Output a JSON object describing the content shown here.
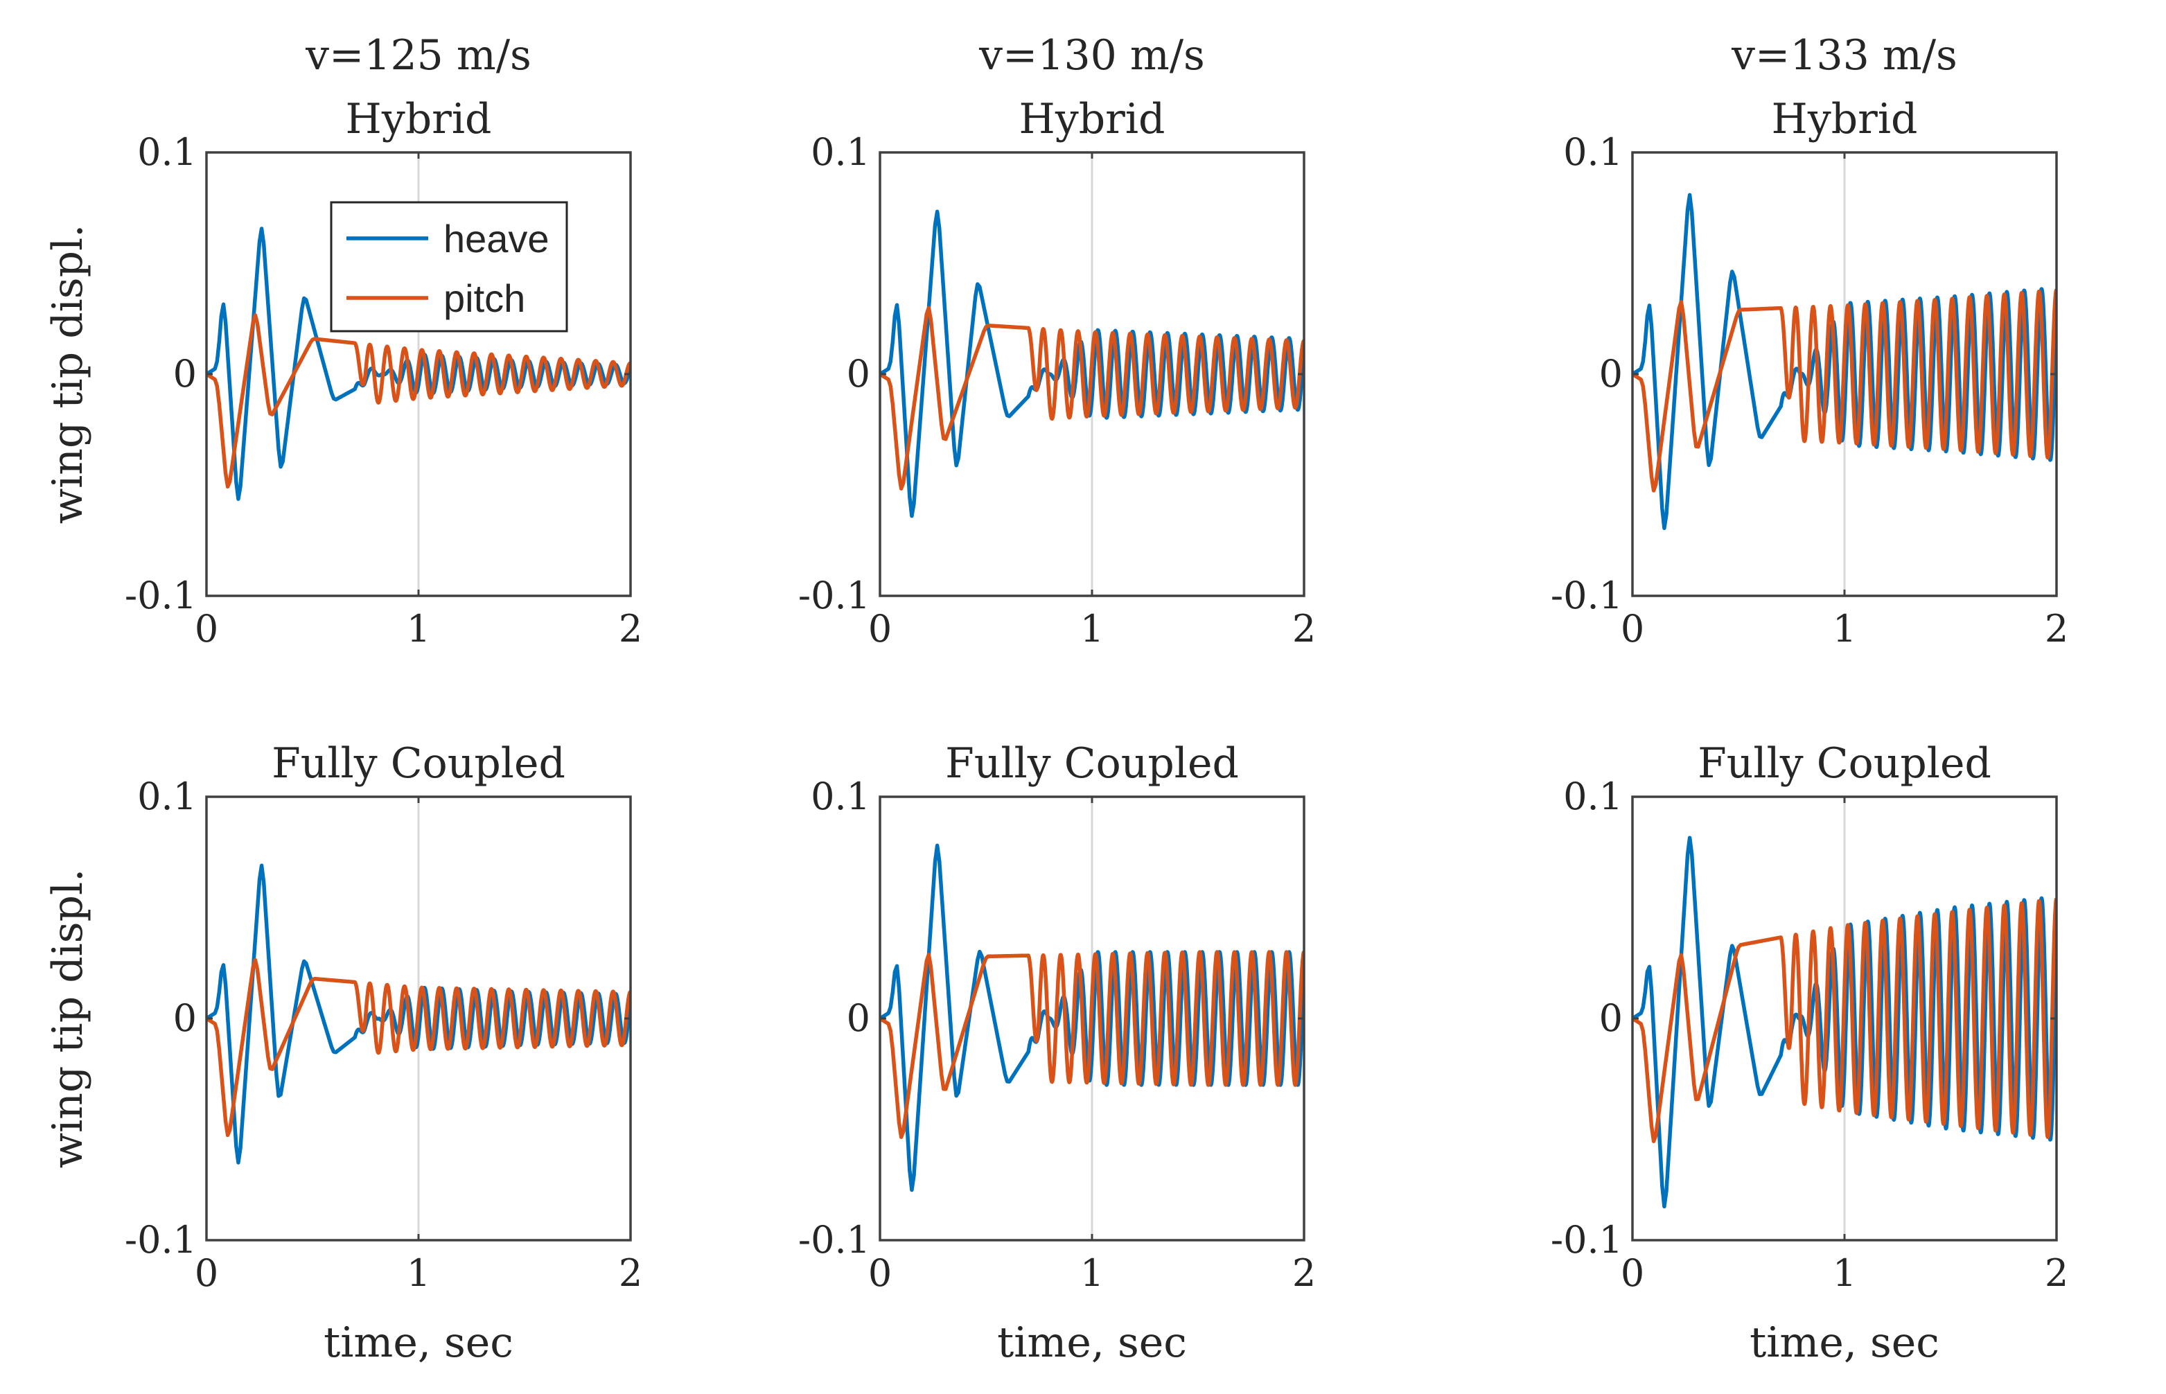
{
  "colors": {
    "heave": "#0072BD",
    "pitch": "#D95319",
    "axes": "#404040",
    "grid": "#d8d8d8",
    "text": "#262626"
  },
  "legend": {
    "entries": [
      "heave",
      "pitch"
    ],
    "placement": "top-right",
    "panel": 0
  },
  "chart_data": [
    {
      "type": "line",
      "title": [
        "v=125 m/s",
        "Hybrid"
      ],
      "ylabel": "wing tip displ.",
      "xlabel": "",
      "xlim": [
        0,
        2
      ],
      "ylim": [
        -0.1,
        0.1
      ],
      "xticks": [
        "0",
        "1",
        "2"
      ],
      "yticks": [
        "0.1",
        "0",
        "-0.1"
      ],
      "grid": "x at t=1",
      "series": [
        {
          "name": "heave",
          "x": [
            0,
            0.05,
            0.08,
            0.15,
            0.26,
            0.35,
            0.46,
            0.6,
            1.0,
            1.5,
            2.0
          ],
          "values": [
            0,
            0.003,
            0.038,
            -0.063,
            0.072,
            -0.047,
            0.037,
            -0.012,
            0.009,
            0.006,
            0.004
          ]
        },
        {
          "name": "pitch",
          "x": [
            0,
            0.05,
            0.1,
            0.23,
            0.3,
            0.5,
            1.0,
            1.5,
            2.0
          ],
          "values": [
            0,
            -0.003,
            -0.055,
            0.03,
            -0.02,
            0.016,
            0.011,
            0.008,
            0.005
          ]
        }
      ]
    },
    {
      "type": "line",
      "title": [
        "v=130 m/s",
        "Hybrid"
      ],
      "ylabel": "",
      "xlabel": "",
      "xlim": [
        0,
        2
      ],
      "ylim": [
        -0.1,
        0.1
      ],
      "xticks": [
        "0",
        "1",
        "2"
      ],
      "yticks": [
        "0.1",
        "0",
        "-0.1"
      ],
      "grid": "x at t=1",
      "series": [
        {
          "name": "heave",
          "x": [
            0,
            0.05,
            0.08,
            0.15,
            0.27,
            0.36,
            0.46,
            0.6,
            1.0,
            1.5,
            2.0
          ],
          "values": [
            0,
            0.003,
            0.038,
            -0.071,
            0.08,
            -0.047,
            0.044,
            -0.02,
            0.02,
            0.018,
            0.016
          ]
        },
        {
          "name": "pitch",
          "x": [
            0,
            0.05,
            0.1,
            0.23,
            0.3,
            0.5,
            1.0,
            1.5,
            2.0
          ],
          "values": [
            0,
            -0.003,
            -0.056,
            0.034,
            -0.032,
            0.022,
            0.019,
            0.017,
            0.015
          ]
        }
      ]
    },
    {
      "type": "line",
      "title": [
        "v=133 m/s",
        "Hybrid"
      ],
      "ylabel": "",
      "xlabel": "",
      "xlim": [
        0,
        2
      ],
      "ylim": [
        -0.1,
        0.1
      ],
      "xticks": [
        "0",
        "1",
        "2"
      ],
      "yticks": [
        "0.1",
        "0",
        "-0.1"
      ],
      "grid": "x at t=1",
      "series": [
        {
          "name": "heave",
          "x": [
            0,
            0.05,
            0.08,
            0.15,
            0.27,
            0.36,
            0.47,
            0.6,
            1.0,
            1.5,
            2.0
          ],
          "values": [
            0,
            0.003,
            0.038,
            -0.077,
            0.088,
            -0.047,
            0.05,
            -0.03,
            0.032,
            0.035,
            0.039
          ]
        },
        {
          "name": "pitch",
          "x": [
            0,
            0.05,
            0.1,
            0.23,
            0.3,
            0.5,
            1.0,
            1.5,
            2.0
          ],
          "values": [
            0,
            -0.003,
            -0.057,
            0.037,
            -0.036,
            0.029,
            0.031,
            0.034,
            0.038
          ]
        }
      ]
    },
    {
      "type": "line",
      "title": [
        "Fully Coupled"
      ],
      "ylabel": "wing tip displ.",
      "xlabel": "time, sec",
      "xlim": [
        0,
        2
      ],
      "ylim": [
        -0.1,
        0.1
      ],
      "xticks": [
        "0",
        "1",
        "2"
      ],
      "yticks": [
        "0.1",
        "0",
        "-0.1"
      ],
      "grid": "x at t=1",
      "series": [
        {
          "name": "heave",
          "x": [
            0,
            0.05,
            0.08,
            0.15,
            0.26,
            0.34,
            0.46,
            0.6,
            1.0,
            1.5,
            2.0
          ],
          "values": [
            0,
            0.003,
            0.03,
            -0.072,
            0.076,
            -0.04,
            0.028,
            -0.016,
            0.014,
            0.012,
            0.011
          ]
        },
        {
          "name": "pitch",
          "x": [
            0,
            0.05,
            0.1,
            0.23,
            0.3,
            0.5,
            1.0,
            1.5,
            2.0
          ],
          "values": [
            0,
            -0.003,
            -0.057,
            0.03,
            -0.025,
            0.018,
            0.014,
            0.013,
            0.012
          ]
        }
      ]
    },
    {
      "type": "line",
      "title": [
        "Fully Coupled"
      ],
      "ylabel": "",
      "xlabel": "time, sec",
      "xlim": [
        0,
        2
      ],
      "ylim": [
        -0.1,
        0.1
      ],
      "xticks": [
        "0",
        "1",
        "2"
      ],
      "yticks": [
        "0.1",
        "0",
        "-0.1"
      ],
      "grid": "x at t=1",
      "series": [
        {
          "name": "heave",
          "x": [
            0,
            0.05,
            0.08,
            0.15,
            0.27,
            0.36,
            0.47,
            0.6,
            1.0,
            1.5,
            2.0
          ],
          "values": [
            0,
            0.003,
            0.03,
            -0.085,
            0.085,
            -0.04,
            0.033,
            -0.03,
            0.03,
            0.03,
            0.03
          ]
        },
        {
          "name": "pitch",
          "x": [
            0,
            0.05,
            0.1,
            0.23,
            0.3,
            0.5,
            1.0,
            1.5,
            2.0
          ],
          "values": [
            0,
            -0.003,
            -0.058,
            0.033,
            -0.035,
            0.028,
            0.029,
            0.03,
            0.03
          ]
        }
      ]
    },
    {
      "type": "line",
      "title": [
        "Fully Coupled"
      ],
      "ylabel": "",
      "xlabel": "time, sec",
      "xlim": [
        0,
        2
      ],
      "ylim": [
        -0.1,
        0.1
      ],
      "xticks": [
        "0",
        "1",
        "2"
      ],
      "yticks": [
        "0.1",
        "0",
        "-0.1"
      ],
      "grid": "x at t=1",
      "series": [
        {
          "name": "heave",
          "x": [
            0,
            0.05,
            0.08,
            0.15,
            0.27,
            0.36,
            0.47,
            0.6,
            1.0,
            1.5,
            2.0
          ],
          "values": [
            0,
            0.003,
            0.03,
            -0.093,
            0.089,
            -0.045,
            0.036,
            -0.036,
            0.042,
            0.05,
            0.055
          ]
        },
        {
          "name": "pitch",
          "x": [
            0,
            0.05,
            0.1,
            0.23,
            0.3,
            0.5,
            1.0,
            1.5,
            2.0
          ],
          "values": [
            0,
            -0.003,
            -0.06,
            0.033,
            -0.04,
            0.033,
            0.042,
            0.048,
            0.054
          ]
        }
      ]
    }
  ]
}
